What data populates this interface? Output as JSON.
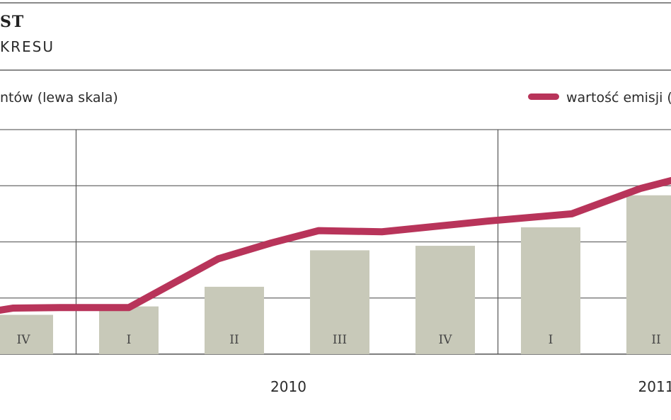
{
  "header": {
    "title": "ST",
    "subtitle": "KRESU"
  },
  "legend": {
    "bars_label": "ntów (lewa skala)",
    "line_label": "wartość emisji (",
    "line_color": "#b8345a",
    "bar_color": "#c8c9b9"
  },
  "chart_data": {
    "type": "bar",
    "categories": [
      "IV",
      "I",
      "II",
      "III",
      "IV",
      "I",
      "II"
    ],
    "years": [
      {
        "label": "2010",
        "quarters": [
          "I",
          "II",
          "III",
          "IV"
        ]
      },
      {
        "label": "2011",
        "quarters": [
          "I",
          "II"
        ]
      }
    ],
    "series": [
      {
        "name": "ntów (lewa skala)",
        "type": "bar",
        "values": [
          0.7,
          0.85,
          1.2,
          1.85,
          1.93,
          2.26,
          2.83
        ]
      },
      {
        "name": "wartość emisji (",
        "type": "line",
        "x": [
          -0.5,
          -0.1,
          0.35,
          1.0,
          1.85,
          2.35,
          2.8,
          3.4,
          4.4,
          5.2,
          5.85,
          6.2,
          6.5
        ],
        "values": [
          0.7,
          0.82,
          0.83,
          0.83,
          1.7,
          1.98,
          2.2,
          2.18,
          2.37,
          2.5,
          2.95,
          3.12,
          3.2
        ]
      }
    ],
    "ylim": [
      0,
      4
    ],
    "grid": true
  }
}
